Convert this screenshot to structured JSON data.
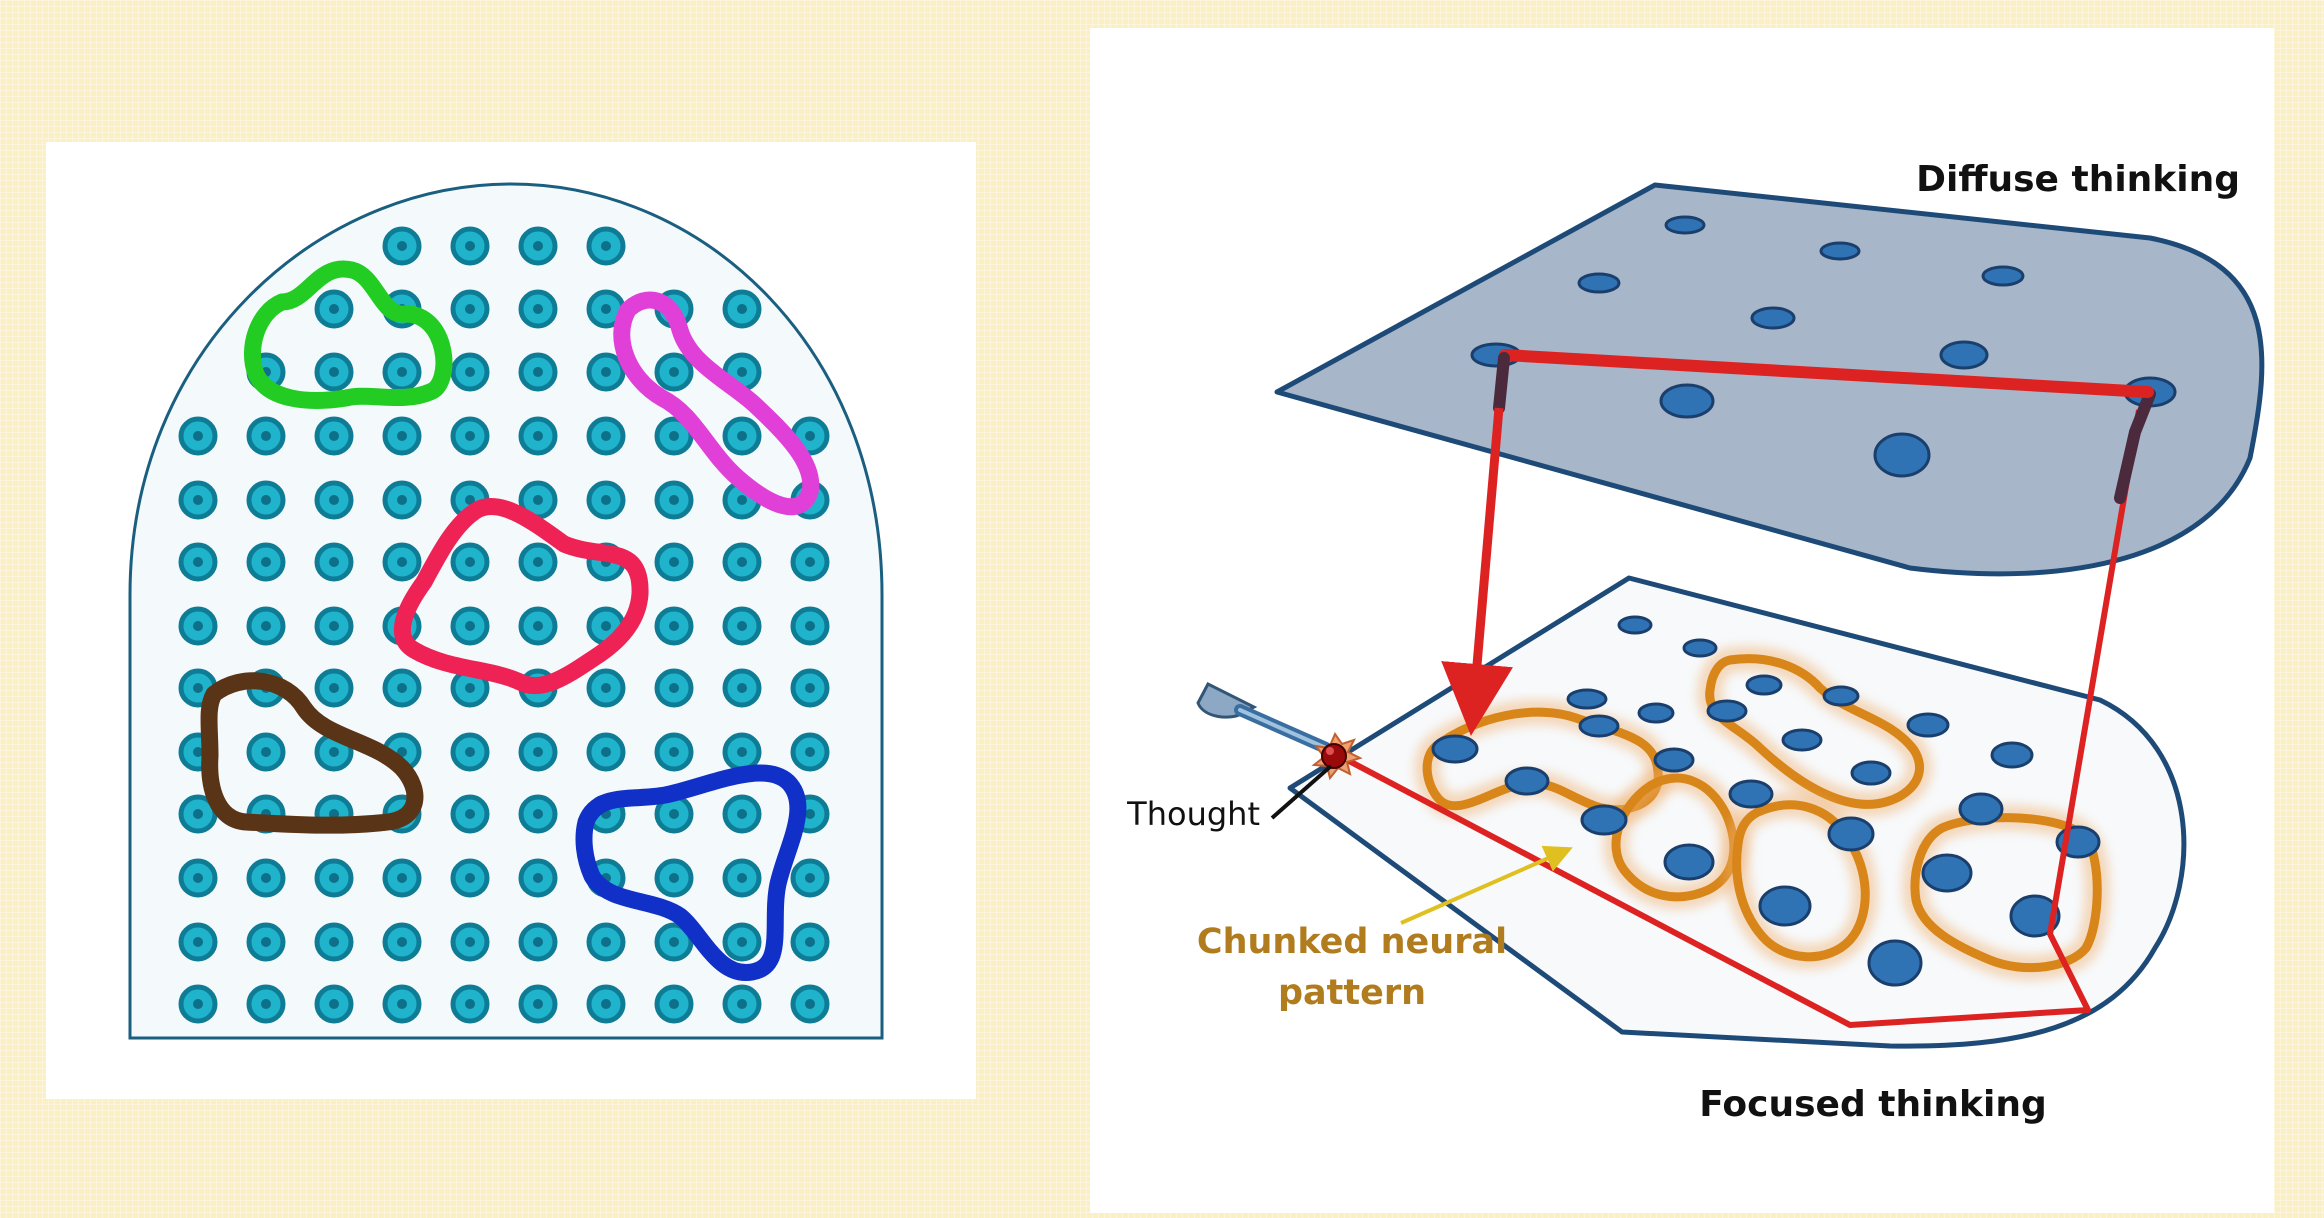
{
  "labels": {
    "diffuse": "Diffuse thinking",
    "focused": "Focused thinking",
    "thought": "Thought",
    "chunked_line1": "Chunked neural",
    "chunked_line2": "pattern"
  },
  "colors": {
    "page_background": "#fbefc4",
    "left_neuron_fill": "#1fb3cc",
    "left_neuron_ring": "#0f7c96",
    "blob_green": "#22cc22",
    "blob_magenta": "#e040d8",
    "blob_red": "#ee2255",
    "blob_brown": "#5a3416",
    "blob_blue": "#1030c8",
    "diffuse_plane": "#a7b6c8",
    "focused_plane": "#f7f9fb",
    "plane_border": "#1e4a78",
    "neuron_blue": "#2f73b5",
    "loop_red": "#dd2222",
    "chunk_orange": "#d8861a",
    "chunked_label": "#b07c1e",
    "arrow_yellow": "#e0c020"
  },
  "icons": {
    "thought_probe": "pinball-plunger-icon",
    "thought_spark": "starburst-icon"
  }
}
